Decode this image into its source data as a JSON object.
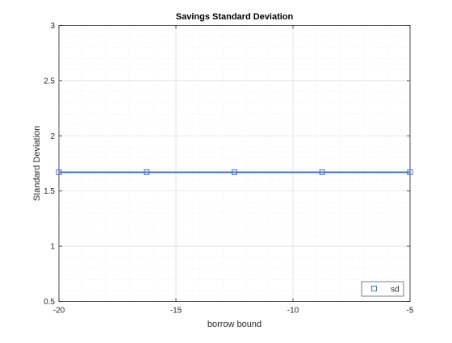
{
  "chart_data": {
    "type": "line",
    "title": "Savings Standard Deviation",
    "xlabel": "borrow bound",
    "ylabel": "Standard Deviation",
    "xlim": [
      -20,
      -5
    ],
    "ylim": [
      0.5,
      3
    ],
    "x_ticks": [
      -20,
      -15,
      -10,
      -5
    ],
    "x_tick_labels": [
      "-20",
      "-15",
      "-10",
      "-5"
    ],
    "y_ticks": [
      0.5,
      1,
      1.5,
      2,
      2.5,
      3
    ],
    "y_tick_labels": [
      "0.5",
      "1",
      "1.5",
      "2",
      "2.5",
      "3"
    ],
    "grid": true,
    "minor_grid": true,
    "legend_position": "bottom-right",
    "series": [
      {
        "name": "sd",
        "marker": "square",
        "color": "#4472c4",
        "x": [
          -20,
          -16.25,
          -12.5,
          -8.75,
          -5
        ],
        "y": [
          1.67,
          1.67,
          1.67,
          1.67,
          1.67
        ]
      }
    ]
  }
}
